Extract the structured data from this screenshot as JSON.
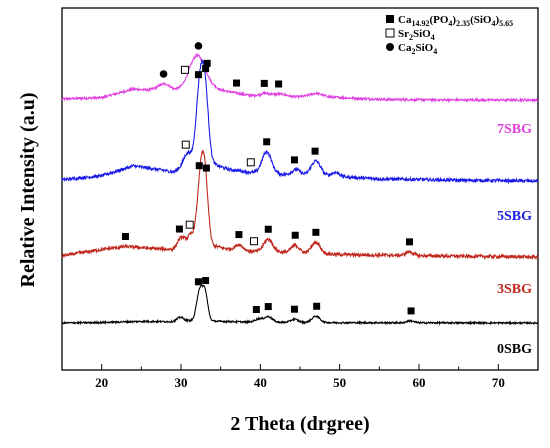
{
  "chart_data": {
    "type": "line",
    "title": "",
    "xlabel": "2 Theta (drgree)",
    "ylabel": "Relative Intensity (a.u)",
    "xlim": [
      15,
      75
    ],
    "xticks": [
      20,
      30,
      40,
      50,
      60,
      70
    ],
    "y_ticks_shown": false,
    "legend_position": "top-right",
    "phases": [
      {
        "key": "ca_phosphosilicate",
        "marker": "filled-square",
        "label_parts": [
          "Ca",
          "14.92",
          "(PO",
          "4",
          ")",
          "2.35",
          "(SiO",
          "4",
          ")",
          "5.65"
        ]
      },
      {
        "key": "sr2sio4",
        "marker": "open-square",
        "label_parts": [
          "Sr",
          "2",
          "SiO",
          "4"
        ]
      },
      {
        "key": "ca2sio4",
        "marker": "filled-circle",
        "label_parts": [
          "Ca",
          "2",
          "SiO",
          "4"
        ]
      }
    ],
    "series": [
      {
        "name": "7SBG",
        "color": "#e040e0",
        "noise": 0.055,
        "baseline": [
          [
            15,
            0.05
          ],
          [
            20,
            0.12
          ],
          [
            24,
            0.55
          ],
          [
            27,
            0.45
          ],
          [
            29,
            0.35
          ],
          [
            31,
            0.75
          ],
          [
            33,
            0.9
          ],
          [
            35,
            0.5
          ],
          [
            40,
            0.12
          ],
          [
            47,
            0.18
          ],
          [
            55,
            0.03
          ],
          [
            65,
            0.0
          ],
          [
            75,
            0.0
          ]
        ],
        "peaks": [
          {
            "pos": 32.0,
            "height": 1.4,
            "width": 0.9
          },
          {
            "pos": 28.0,
            "height": 0.4,
            "width": 0.9
          },
          {
            "pos": 40.5,
            "height": 0.2,
            "width": 0.8
          },
          {
            "pos": 42.5,
            "height": 0.15,
            "width": 0.8
          },
          {
            "pos": 47.0,
            "height": 0.15,
            "width": 0.8
          }
        ],
        "markers": [
          {
            "phase": "ca2sio4",
            "x": 27.8
          },
          {
            "phase": "sr2sio4",
            "x": 30.5
          },
          {
            "phase": "ca2sio4",
            "x": 32.2
          },
          {
            "phase": "ca_phosphosilicate",
            "x": 33.3
          },
          {
            "phase": "ca_phosphosilicate",
            "x": 37.0
          },
          {
            "phase": "ca_phosphosilicate",
            "x": 40.5
          },
          {
            "phase": "ca_phosphosilicate",
            "x": 42.3
          }
        ]
      },
      {
        "name": "5SBG",
        "color": "#1a1ae6",
        "noise": 0.06,
        "baseline": [
          [
            15,
            0.05
          ],
          [
            20,
            0.2
          ],
          [
            24,
            0.58
          ],
          [
            27,
            0.45
          ],
          [
            29,
            0.35
          ],
          [
            31,
            0.6
          ],
          [
            33,
            0.75
          ],
          [
            36,
            0.45
          ],
          [
            40,
            0.28
          ],
          [
            47,
            0.22
          ],
          [
            55,
            0.08
          ],
          [
            65,
            0.03
          ],
          [
            75,
            0.0
          ]
        ],
        "peaks": [
          {
            "pos": 32.3,
            "height": 2.5,
            "width": 0.45
          },
          {
            "pos": 33.0,
            "height": 2.75,
            "width": 0.45
          },
          {
            "pos": 30.8,
            "height": 0.5,
            "width": 0.5
          },
          {
            "pos": 40.8,
            "height": 0.85,
            "width": 0.6
          },
          {
            "pos": 44.5,
            "height": 0.2,
            "width": 0.5
          },
          {
            "pos": 47.0,
            "height": 0.55,
            "width": 0.6
          },
          {
            "pos": 49.5,
            "height": 0.15,
            "width": 0.5
          }
        ],
        "markers": [
          {
            "phase": "sr2sio4",
            "x": 30.6
          },
          {
            "phase": "ca_phosphosilicate",
            "x": 32.2
          },
          {
            "phase": "ca_phosphosilicate",
            "x": 33.1
          },
          {
            "phase": "sr2sio4",
            "x": 38.8
          },
          {
            "phase": "ca_phosphosilicate",
            "x": 40.8
          },
          {
            "phase": "ca_phosphosilicate",
            "x": 44.3
          },
          {
            "phase": "ca_phosphosilicate",
            "x": 46.9
          }
        ]
      },
      {
        "name": "3SBG",
        "color": "#c0281e",
        "noise": 0.065,
        "baseline": [
          [
            15,
            0.05
          ],
          [
            20,
            0.3
          ],
          [
            23,
            0.42
          ],
          [
            26,
            0.35
          ],
          [
            29,
            0.3
          ],
          [
            31,
            0.55
          ],
          [
            34,
            0.45
          ],
          [
            37,
            0.25
          ],
          [
            42,
            0.2
          ],
          [
            50,
            0.1
          ],
          [
            60,
            0.05
          ],
          [
            75,
            0.0
          ]
        ],
        "peaks": [
          {
            "pos": 32.4,
            "height": 2.2,
            "width": 0.4
          },
          {
            "pos": 33.0,
            "height": 2.7,
            "width": 0.4
          },
          {
            "pos": 30.0,
            "height": 0.35,
            "width": 0.45
          },
          {
            "pos": 31.3,
            "height": 0.35,
            "width": 0.45
          },
          {
            "pos": 37.3,
            "height": 0.25,
            "width": 0.5
          },
          {
            "pos": 41.0,
            "height": 0.5,
            "width": 0.55
          },
          {
            "pos": 44.4,
            "height": 0.3,
            "width": 0.5
          },
          {
            "pos": 47.0,
            "height": 0.45,
            "width": 0.55
          },
          {
            "pos": 58.8,
            "height": 0.15,
            "width": 0.5
          }
        ],
        "markers": [
          {
            "phase": "ca_phosphosilicate",
            "x": 23.0
          },
          {
            "phase": "ca_phosphosilicate",
            "x": 29.8
          },
          {
            "phase": "sr2sio4",
            "x": 31.1
          },
          {
            "phase": "ca_phosphosilicate",
            "x": 32.3
          },
          {
            "phase": "ca_phosphosilicate",
            "x": 33.2
          },
          {
            "phase": "ca_phosphosilicate",
            "x": 37.3
          },
          {
            "phase": "sr2sio4",
            "x": 39.2
          },
          {
            "phase": "ca_phosphosilicate",
            "x": 41.0
          },
          {
            "phase": "ca_phosphosilicate",
            "x": 44.4
          },
          {
            "phase": "ca_phosphosilicate",
            "x": 47.0
          },
          {
            "phase": "ca_phosphosilicate",
            "x": 58.8
          }
        ]
      },
      {
        "name": "0SBG",
        "color": "#000000",
        "noise": 0.05,
        "baseline": [
          [
            15,
            0.0
          ],
          [
            20,
            0.03
          ],
          [
            25,
            0.1
          ],
          [
            29,
            0.08
          ],
          [
            31,
            0.15
          ],
          [
            35,
            0.1
          ],
          [
            40,
            0.05
          ],
          [
            50,
            0.02
          ],
          [
            75,
            0.0
          ]
        ],
        "peaks": [
          {
            "pos": 32.3,
            "height": 1.75,
            "width": 0.35
          },
          {
            "pos": 33.0,
            "height": 1.85,
            "width": 0.35
          },
          {
            "pos": 29.9,
            "height": 0.25,
            "width": 0.4
          },
          {
            "pos": 39.8,
            "height": 0.2,
            "width": 0.45
          },
          {
            "pos": 41.0,
            "height": 0.35,
            "width": 0.5
          },
          {
            "pos": 44.3,
            "height": 0.2,
            "width": 0.45
          },
          {
            "pos": 47.0,
            "height": 0.4,
            "width": 0.5
          },
          {
            "pos": 58.9,
            "height": 0.12,
            "width": 0.45
          }
        ],
        "markers": [
          {
            "phase": "ca_phosphosilicate",
            "x": 32.2
          },
          {
            "phase": "ca_phosphosilicate",
            "x": 33.1
          },
          {
            "phase": "ca_phosphosilicate",
            "x": 39.5
          },
          {
            "phase": "ca_phosphosilicate",
            "x": 41.0
          },
          {
            "phase": "ca_phosphosilicate",
            "x": 44.3
          },
          {
            "phase": "ca_phosphosilicate",
            "x": 47.1
          },
          {
            "phase": "ca_phosphosilicate",
            "x": 59.0
          }
        ]
      }
    ]
  }
}
